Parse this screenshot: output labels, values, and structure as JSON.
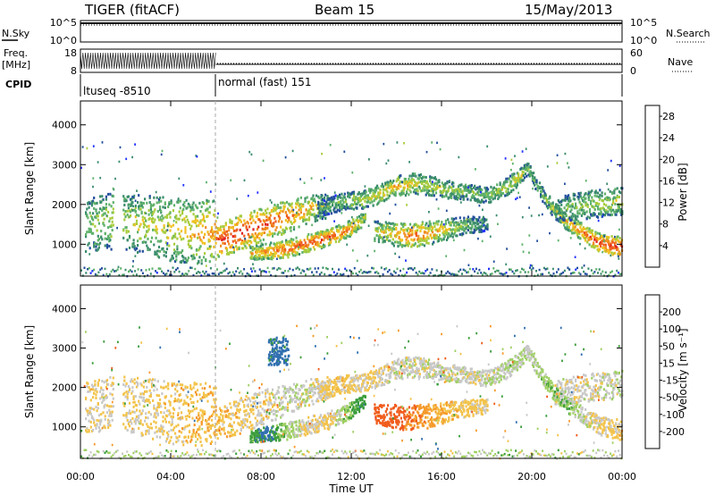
{
  "header": {
    "title": "TIGER (fitACF)",
    "beam": "Beam 15",
    "date": "15/May/2013"
  },
  "labels": {
    "nsky": "N.Sky",
    "freq": "Freq.",
    "freq_unit": "[MHz]",
    "cpid": "CPID",
    "nsearch": "N.Search",
    "nave": "Nave"
  },
  "axes": {
    "nsky_ticks": [
      "10^5",
      "10^0"
    ],
    "nsearch_ticks": [
      "10^5",
      "10^0"
    ],
    "freq_ticks": [
      "18",
      "8"
    ],
    "nave_ticks": [
      "60",
      "0"
    ]
  },
  "cpid": [
    {
      "label": "ltuseq -8510",
      "start": 0,
      "end": 6
    },
    {
      "label": "normal (fast) 151",
      "start": 6,
      "end": 24
    }
  ],
  "colors": {
    "power": [
      "#2030ff",
      "#234e9c",
      "#3a8c6b",
      "#5fb26a",
      "#a8cc3c",
      "#f0c020",
      "#f08c1e",
      "#ee5a1e",
      "#e01e1e"
    ],
    "velocity": [
      "#e81c1c",
      "#f05a1a",
      "#f59a2a",
      "#f3c34a",
      "#c8c8c8",
      "#9fd063",
      "#3a9c3a",
      "#306fb0",
      "#1a1ab4"
    ]
  },
  "chart_data": [
    {
      "type": "heatmap",
      "name": "Power",
      "xlabel": "",
      "ylabel": "Slant Range [km]",
      "xlim": [
        0,
        24
      ],
      "ylim": [
        200,
        4600
      ],
      "yticks": [
        1000,
        2000,
        3000,
        4000
      ],
      "colorbar": {
        "label": "Power [dB]",
        "ticks": [
          4,
          8,
          12,
          16,
          20,
          24,
          28
        ],
        "range": [
          0,
          30
        ]
      },
      "echo_bands": [
        {
          "x": [
            0.2,
            1.2,
            2.0,
            3.0,
            4.0,
            5.0,
            6.0
          ],
          "center": [
            1500,
            1600,
            1600,
            1500,
            1400,
            1350,
            1350
          ],
          "width": [
            650,
            700,
            700,
            750,
            800,
            800,
            800
          ],
          "power": [
            12,
            14,
            14,
            15,
            16,
            18,
            20
          ]
        },
        {
          "x": [
            6.0,
            7.0,
            8.0,
            9.0,
            10.0,
            11.0
          ],
          "center": [
            1100,
            1300,
            1500,
            1700,
            1900,
            2000
          ],
          "width": [
            400,
            450,
            450,
            400,
            350,
            300
          ],
          "power": [
            26,
            26,
            24,
            22,
            18,
            14
          ]
        },
        {
          "x": [
            7.5,
            8.2,
            9.0,
            10.0,
            11.0,
            12.0,
            12.6
          ],
          "center": [
            800,
            850,
            900,
            1050,
            1200,
            1450,
            1700
          ],
          "width": [
            160,
            200,
            220,
            220,
            220,
            200,
            160
          ],
          "power": [
            18,
            20,
            22,
            24,
            24,
            20,
            14
          ]
        },
        {
          "x": [
            10.5,
            11.5,
            12.5,
            13.3,
            14.0,
            14.8,
            15.5,
            16.3,
            17.0,
            18.0,
            18.8,
            19.4,
            19.8,
            20.2,
            20.8,
            21.5,
            22.3,
            23.0,
            24.0
          ],
          "center": [
            1900,
            2100,
            2150,
            2300,
            2500,
            2550,
            2500,
            2400,
            2350,
            2250,
            2450,
            2700,
            2950,
            2500,
            2000,
            1600,
            1300,
            1050,
            950
          ],
          "width": [
            220,
            220,
            220,
            240,
            260,
            260,
            240,
            220,
            200,
            200,
            220,
            200,
            160,
            180,
            200,
            200,
            220,
            240,
            260
          ],
          "power": [
            8,
            12,
            14,
            16,
            18,
            16,
            14,
            14,
            12,
            12,
            14,
            16,
            12,
            10,
            14,
            18,
            22,
            24,
            26
          ]
        },
        {
          "x": [
            13.0,
            13.8,
            14.6,
            15.4,
            16.2,
            17.0,
            18.0
          ],
          "center": [
            1350,
            1300,
            1250,
            1300,
            1400,
            1500,
            1550
          ],
          "width": [
            260,
            300,
            320,
            300,
            260,
            220,
            180
          ],
          "power": [
            14,
            18,
            22,
            20,
            16,
            12,
            8
          ]
        },
        {
          "x": [
            21.0,
            22.0,
            23.0,
            24.0
          ],
          "center": [
            1900,
            2000,
            2050,
            2100
          ],
          "width": [
            300,
            350,
            350,
            350
          ],
          "power": [
            10,
            12,
            14,
            14
          ]
        }
      ],
      "ground_scatter_x": [
        0,
        24
      ],
      "ground_scatter_range": [
        200,
        400
      ]
    },
    {
      "type": "heatmap",
      "name": "Velocity",
      "xlabel": "Time UT",
      "ylabel": "Slant Range [km]",
      "xlim": [
        0,
        24
      ],
      "ylim": [
        200,
        4600
      ],
      "yticks": [
        1000,
        2000,
        3000,
        4000
      ],
      "xticks": [
        "00:00",
        "04:00",
        "08:00",
        "12:00",
        "16:00",
        "20:00",
        "00:00"
      ],
      "colorbar": {
        "label": "Velocity [m s⁻¹]",
        "ticks": [
          200,
          100,
          50,
          15,
          -15,
          -50,
          -100,
          -200
        ],
        "range": [
          -250,
          250
        ]
      },
      "echo_bands": [
        {
          "x": [
            0.2,
            1.2,
            2.0,
            3.0,
            4.0,
            5.0,
            6.0
          ],
          "center": [
            1500,
            1600,
            1600,
            1500,
            1400,
            1350,
            1350
          ],
          "width": [
            650,
            700,
            700,
            750,
            800,
            800,
            800
          ],
          "velocity": [
            -15,
            -15,
            -15,
            -20,
            -30,
            -40,
            -40
          ]
        },
        {
          "x": [
            6.0,
            7.0,
            8.0,
            9.0,
            10.0,
            11.0
          ],
          "center": [
            1100,
            1300,
            1500,
            1700,
            1900,
            2000
          ],
          "width": [
            400,
            450,
            450,
            400,
            350,
            300
          ],
          "velocity": [
            -40,
            -30,
            -15,
            10,
            0,
            -15
          ]
        },
        {
          "x": [
            7.5,
            8.2,
            9.0,
            10.0,
            11.0,
            12.0,
            12.6
          ],
          "center": [
            800,
            850,
            900,
            1050,
            1200,
            1450,
            1700
          ],
          "width": [
            160,
            200,
            220,
            220,
            220,
            200,
            160
          ],
          "velocity": [
            60,
            120,
            40,
            -10,
            -20,
            60,
            100
          ]
        },
        {
          "x": [
            10.5,
            11.5,
            12.5,
            13.3,
            14.0,
            14.8,
            15.5,
            16.3,
            17.0,
            18.0,
            18.8,
            19.4,
            19.8,
            20.2,
            20.8,
            21.5,
            22.3,
            23.0,
            24.0
          ],
          "center": [
            1900,
            2100,
            2150,
            2300,
            2500,
            2550,
            2500,
            2400,
            2350,
            2250,
            2450,
            2700,
            2950,
            2500,
            2000,
            1600,
            1300,
            1050,
            950
          ],
          "width": [
            220,
            220,
            220,
            240,
            260,
            260,
            240,
            220,
            200,
            200,
            220,
            200,
            160,
            180,
            200,
            200,
            220,
            240,
            260
          ],
          "velocity": [
            -15,
            -30,
            -20,
            -10,
            0,
            0,
            5,
            0,
            0,
            5,
            10,
            20,
            15,
            20,
            40,
            50,
            10,
            -20,
            -30
          ]
        },
        {
          "x": [
            13.0,
            13.8,
            14.6,
            15.4,
            16.2,
            17.0,
            18.0
          ],
          "center": [
            1350,
            1300,
            1250,
            1300,
            1400,
            1500,
            1550
          ],
          "width": [
            260,
            300,
            320,
            300,
            260,
            220,
            180
          ],
          "velocity": [
            -180,
            -150,
            -100,
            -70,
            -40,
            -30,
            -20
          ]
        },
        {
          "x": [
            21.0,
            22.0,
            23.0,
            24.0
          ],
          "center": [
            1900,
            2000,
            2050,
            2100
          ],
          "width": [
            300,
            350,
            350,
            350
          ],
          "velocity": [
            0,
            -10,
            0,
            10
          ]
        }
      ],
      "blob": {
        "x": [
          8.3,
          9.2
        ],
        "range": [
          2600,
          3300
        ],
        "velocity": 200
      }
    }
  ]
}
